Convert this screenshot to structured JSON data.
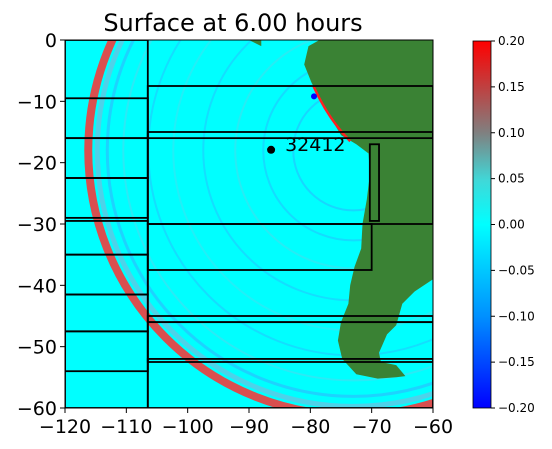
{
  "chart_data": {
    "type": "heatmap",
    "title": "Surface at 6.00 hours",
    "xlim": [
      -120,
      -60
    ],
    "ylim": [
      -60,
      0
    ],
    "xticks": [
      -120,
      -110,
      -100,
      -90,
      -80,
      -70,
      -60
    ],
    "yticks": [
      0,
      -10,
      -20,
      -30,
      -40,
      -50,
      -60
    ],
    "xtick_labels": [
      "−120",
      "−110",
      "−100",
      "−90",
      "−80",
      "−70",
      "−60"
    ],
    "ytick_labels": [
      "0",
      "−10",
      "−20",
      "−30",
      "−40",
      "−50",
      "−60"
    ],
    "colorbar": {
      "range": [
        -0.2,
        0.2
      ],
      "ticks": [
        0.2,
        0.15,
        0.1,
        0.05,
        0.0,
        -0.05,
        -0.1,
        -0.15,
        -0.2
      ],
      "tick_labels": [
        "0.20",
        "0.15",
        "0.10",
        "0.05",
        "0.00",
        "−0.05",
        "−0.10",
        "−0.15",
        "−0.20"
      ]
    },
    "station": {
      "label": "32412",
      "lon": -86.4,
      "lat": -17.9
    },
    "colors": {
      "ocean": "#00ffff",
      "land": "#3a8234",
      "wave_positive": "#ff2a2a",
      "wave_negative": "#3399ff",
      "patch_outline": "#000000"
    },
    "grid_patches": [
      {
        "lon": [
          -120,
          -106.5
        ],
        "lat": [
          -60,
          0
        ]
      },
      {
        "lon": [
          -120,
          -106.5
        ],
        "lat": [
          -16,
          -9.5
        ]
      },
      {
        "lon": [
          -120,
          -106.5
        ],
        "lat": [
          -22.5,
          -16
        ]
      },
      {
        "lon": [
          -120,
          -106.5
        ],
        "lat": [
          -29,
          -22.5
        ]
      },
      {
        "lon": [
          -120,
          -106.5
        ],
        "lat": [
          -35,
          -29.5
        ]
      },
      {
        "lon": [
          -120,
          -106.5
        ],
        "lat": [
          -41.5,
          -35
        ]
      },
      {
        "lon": [
          -120,
          -106.5
        ],
        "lat": [
          -47.5,
          -41.5
        ]
      },
      {
        "lon": [
          -120,
          -106.5
        ],
        "lat": [
          -54,
          -47.5
        ]
      },
      {
        "lon": [
          -113,
          -113
        ],
        "lat": [
          -60,
          -9.5
        ]
      },
      {
        "lon": [
          -106.5,
          -60
        ],
        "lat": [
          -16,
          -7.5
        ]
      },
      {
        "lon": [
          -106.5,
          -60
        ],
        "lat": [
          -30,
          -15
        ]
      },
      {
        "lon": [
          -106.5,
          -70
        ],
        "lat": [
          -37.5,
          -30
        ]
      },
      {
        "lon": [
          -106.5,
          -60
        ],
        "lat": [
          -46,
          -45
        ]
      },
      {
        "lon": [
          -106.5,
          -60
        ],
        "lat": [
          -52.5,
          -46
        ]
      },
      {
        "lon": [
          -106.5,
          -60
        ],
        "lat": [
          -60,
          -52
        ]
      },
      {
        "lon": [
          -98,
          -98
        ],
        "lat": [
          -60,
          -7.5
        ]
      },
      {
        "lon": [
          -88,
          -88
        ],
        "lat": [
          -60,
          0
        ]
      },
      {
        "lon": [
          -76,
          -76
        ],
        "lat": [
          -60,
          0
        ]
      },
      {
        "lon": [
          -70.3,
          -70.3
        ],
        "lat": [
          -60,
          0
        ]
      },
      {
        "lon": [
          -70.3,
          -68.8
        ],
        "lat": [
          -29.5,
          -17
        ]
      },
      {
        "lon": [
          -65.5,
          -65.5
        ],
        "lat": [
          -60,
          -52
        ]
      }
    ]
  }
}
